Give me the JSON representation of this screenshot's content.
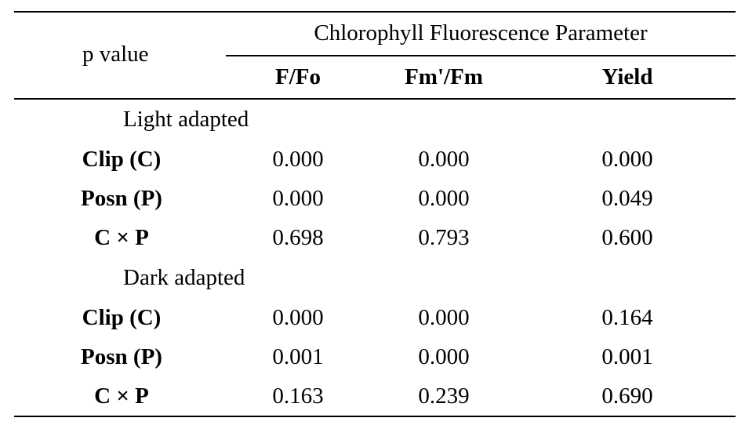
{
  "header": {
    "stub": "p value",
    "group": "Chlorophyll Fluorescence Parameter",
    "columns": [
      "F/Fo",
      "Fm'/Fm",
      "Yield"
    ]
  },
  "sections": [
    {
      "label": "Light adapted",
      "rows": [
        {
          "factor": "Clip (C)",
          "values": [
            "0.000",
            "0.000",
            "0.000"
          ]
        },
        {
          "factor": "Posn (P)",
          "values": [
            "0.000",
            "0.000",
            "0.049"
          ]
        },
        {
          "factor": "C × P",
          "values": [
            "0.698",
            "0.793",
            "0.600"
          ]
        }
      ]
    },
    {
      "label": "Dark adapted",
      "rows": [
        {
          "factor": "Clip (C)",
          "values": [
            "0.000",
            "0.000",
            "0.164"
          ]
        },
        {
          "factor": "Posn (P)",
          "values": [
            "0.001",
            "0.000",
            "0.001"
          ]
        },
        {
          "factor": "C × P",
          "values": [
            "0.163",
            "0.239",
            "0.690"
          ]
        }
      ]
    }
  ]
}
